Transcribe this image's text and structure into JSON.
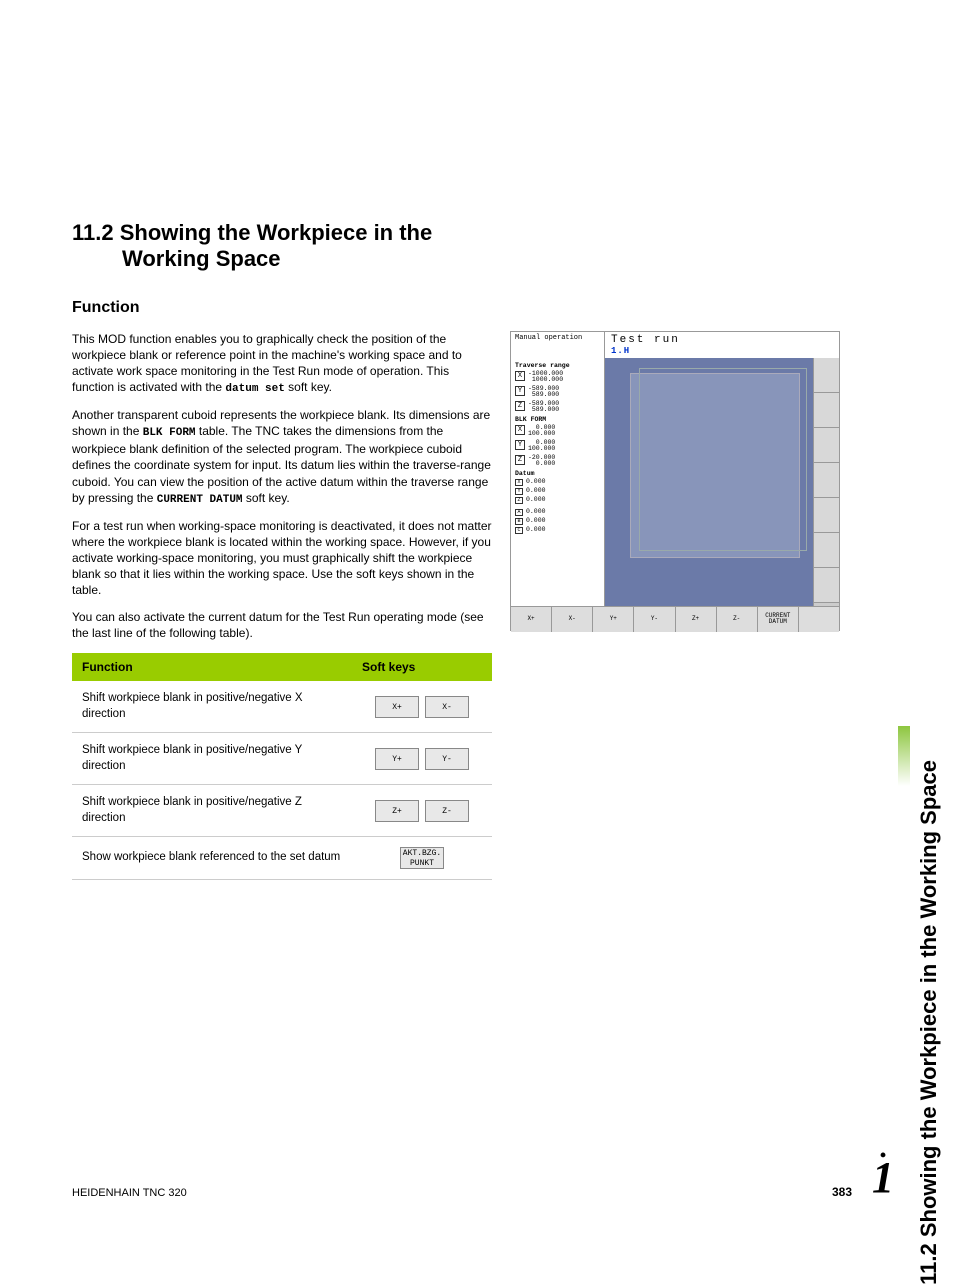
{
  "side_title": "11.2 Showing the Workpiece in the Working Space",
  "heading_line1": "11.2 Showing the Workpiece in the",
  "heading_line2": "Working Space",
  "subheading": "Function",
  "para1_a": "This MOD function enables you to graphically check the position of the workpiece blank or reference point in the machine's working space and to activate work space monitoring in the Test Run mode of operation. This function is activated with the ",
  "para1_mono": "datum set",
  "para1_b": " soft key.",
  "para2_a": "Another transparent cuboid represents the workpiece blank. Its dimensions are shown in the ",
  "para2_mono1": "BLK FORM",
  "para2_b": " table. The TNC takes the dimensions from the workpiece blank definition of the selected program. The workpiece cuboid defines the coordinate system for input. Its datum lies within the traverse-range cuboid. You can view the position of the active datum within the traverse range by pressing the ",
  "para2_mono2": "CURRENT DATUM",
  "para2_c": " soft key.",
  "para3": "For a test run when working-space monitoring is deactivated, it does not matter where the workpiece blank is located within the working space. However, if you activate working-space monitoring, you must graphically shift the workpiece blank so that it lies within the working space. Use the soft keys shown in the table.",
  "para4": "You can also activate the current datum for the Test Run operating mode (see the last line of the following table).",
  "table": {
    "header_func": "Function",
    "header_keys": "Soft keys",
    "rows": [
      {
        "func": "Shift workpiece blank in positive/negative X direction",
        "k1": "X+",
        "k2": "X-"
      },
      {
        "func": "Shift workpiece blank in positive/negative Y direction",
        "k1": "Y+",
        "k2": "Y-"
      },
      {
        "func": "Shift workpiece blank in positive/negative Z direction",
        "k1": "Z+",
        "k2": "Z-"
      },
      {
        "func": "Show workpiece blank referenced to the set datum",
        "k1": "AKT.BZG.\nPUNKT",
        "k2": ""
      }
    ]
  },
  "screenshot": {
    "mode": "Manual operation",
    "title": "Test run",
    "program": "1.H",
    "sections": {
      "traverse": {
        "label": "Traverse range",
        "axes": [
          {
            "axis": "X",
            "min": "-1000.000",
            "max": "1000.000"
          },
          {
            "axis": "Y",
            "min": "-589.000",
            "max": "589.000"
          },
          {
            "axis": "Z",
            "min": "-589.000",
            "max": "589.000"
          }
        ]
      },
      "blk": {
        "label": "BLK FORM",
        "axes": [
          {
            "axis": "X",
            "min": "0.000",
            "max": "100.000"
          },
          {
            "axis": "Y",
            "min": "0.000",
            "max": "100.000"
          },
          {
            "axis": "Z",
            "min": "-20.000",
            "max": "0.000"
          }
        ]
      },
      "datum": {
        "label": "Datum",
        "rows1": [
          {
            "axis": "X",
            "val": "0.000"
          },
          {
            "axis": "Y",
            "val": "0.000"
          },
          {
            "axis": "Z",
            "val": "0.000"
          }
        ],
        "rows2": [
          {
            "axis": "A",
            "val": "0.000"
          },
          {
            "axis": "B",
            "val": "0.000"
          },
          {
            "axis": "C",
            "val": "0.000"
          }
        ]
      }
    },
    "footer_keys": [
      "X+",
      "X-",
      "Y+",
      "Y-",
      "Z+",
      "Z-",
      "CURRENT\nDATUM",
      ""
    ]
  },
  "footer": {
    "left": "HEIDENHAIN TNC 320",
    "page": "383"
  }
}
